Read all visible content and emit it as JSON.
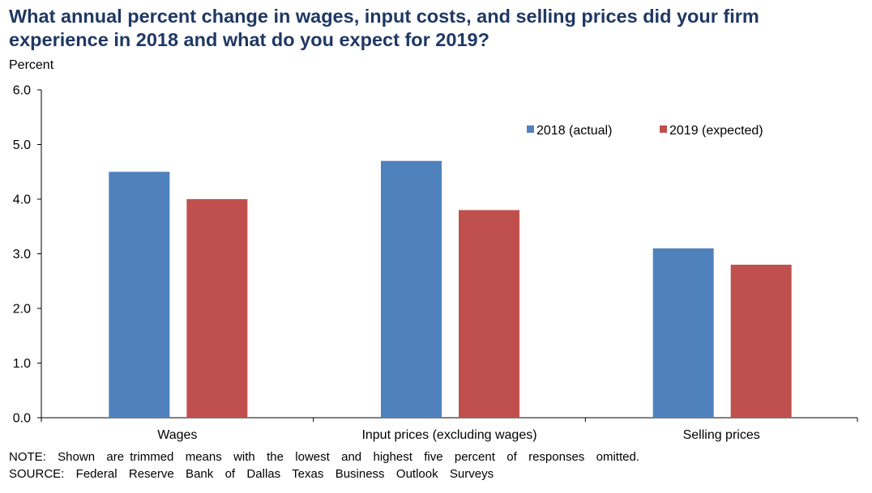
{
  "title": "What annual percent change in wages, input costs, and selling prices did your firm experience in 2018 and what do you expect for 2019?",
  "note": "NOTE:  Shown  are trimmed  means  with  the  lowest  and  highest  five  percent  of  responses  omitted.",
  "source": "SOURCE:  Federal  Reserve  Bank  of  Dallas  Texas  Business  Outlook  Surveys",
  "colors": {
    "title": "#1f3864",
    "series_2018": "#4f81bd",
    "series_2019": "#c0504d"
  },
  "chart_data": {
    "type": "bar",
    "ylabel": "Percent",
    "xlabel": "",
    "ylim": [
      0,
      6
    ],
    "yticks": [
      "0.0",
      "1.0",
      "2.0",
      "3.0",
      "4.0",
      "5.0",
      "6.0"
    ],
    "grid": false,
    "legend_position": "top-right",
    "categories": [
      "Wages",
      "Input prices (excluding wages)",
      "Selling prices"
    ],
    "series": [
      {
        "name": "2018 (actual)",
        "color": "#4f81bd",
        "values": [
          4.5,
          4.7,
          3.1
        ]
      },
      {
        "name": "2019 (expected)",
        "color": "#c0504d",
        "values": [
          4.0,
          3.8,
          2.8
        ]
      }
    ]
  }
}
